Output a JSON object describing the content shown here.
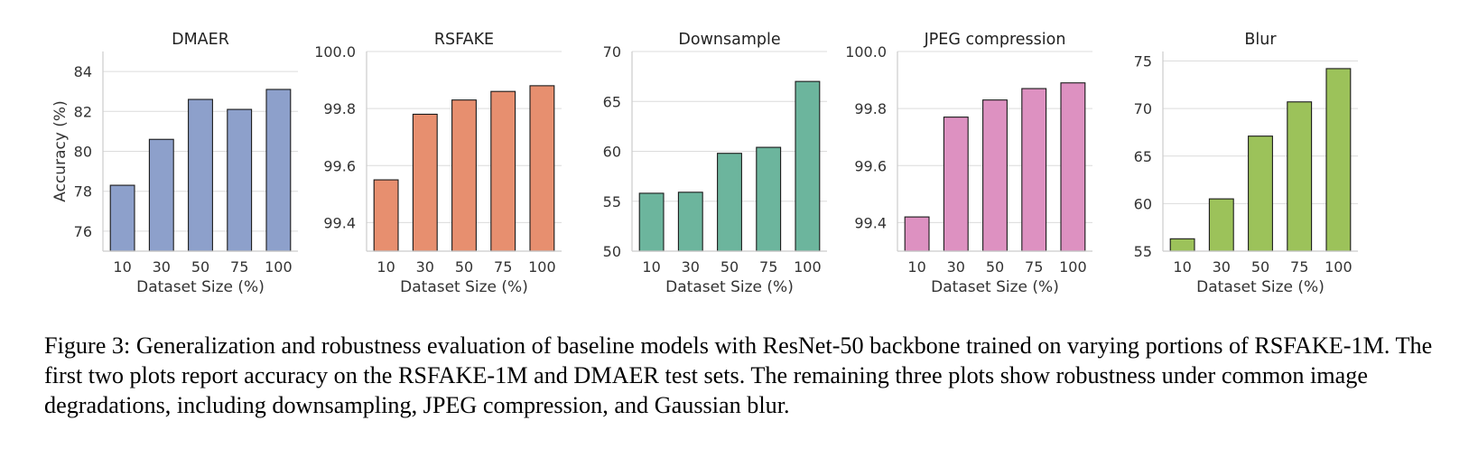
{
  "figure": {
    "caption": "Figure 3: Generalization and robustness evaluation of baseline models with ResNet-50 backbone trained on varying portions of RSFAKE-1M. The first two plots report accuracy on the RSFAKE-1M and DMAER test sets. The remaining three plots show robustness under common image degradations, including downsampling, JPEG compression, and Gaussian blur."
  },
  "chart_data": [
    {
      "type": "bar",
      "title": "DMAER",
      "xlabel": "Dataset Size (%)",
      "ylabel": "Accuracy (%)",
      "categories": [
        "10",
        "30",
        "50",
        "75",
        "100"
      ],
      "values": [
        78.3,
        80.6,
        82.6,
        82.1,
        83.1
      ],
      "ylim": [
        75.0,
        85.0
      ],
      "yticks": [
        "76",
        "78",
        "80",
        "82",
        "84"
      ],
      "color": "#8da0cb",
      "grid": "horizontal"
    },
    {
      "type": "bar",
      "title": "RSFAKE",
      "xlabel": "Dataset Size (%)",
      "ylabel": "",
      "categories": [
        "10",
        "30",
        "50",
        "75",
        "100"
      ],
      "values": [
        99.55,
        99.78,
        99.83,
        99.86,
        99.88
      ],
      "ylim": [
        99.3,
        100.0
      ],
      "yticks": [
        "99.4",
        "99.6",
        "99.8",
        "100.0"
      ],
      "color": "#e78f6f",
      "grid": "horizontal"
    },
    {
      "type": "bar",
      "title": "Downsample",
      "xlabel": "Dataset Size (%)",
      "ylabel": "",
      "categories": [
        "10",
        "30",
        "50",
        "75",
        "100"
      ],
      "values": [
        55.8,
        55.9,
        59.8,
        60.4,
        67.0
      ],
      "ylim": [
        50,
        70
      ],
      "yticks": [
        "50",
        "55",
        "60",
        "65",
        "70"
      ],
      "color": "#6cb59d",
      "grid": "horizontal"
    },
    {
      "type": "bar",
      "title": "JPEG compression",
      "xlabel": "Dataset Size (%)",
      "ylabel": "",
      "categories": [
        "10",
        "30",
        "50",
        "75",
        "100"
      ],
      "values": [
        99.42,
        99.77,
        99.83,
        99.87,
        99.89
      ],
      "ylim": [
        99.3,
        100.0
      ],
      "yticks": [
        "99.4",
        "99.6",
        "99.8",
        "100.0"
      ],
      "color": "#dd91c1",
      "grid": "horizontal"
    },
    {
      "type": "bar",
      "title": "Blur",
      "xlabel": "Dataset Size (%)",
      "ylabel": "",
      "categories": [
        "10",
        "30",
        "50",
        "75",
        "100"
      ],
      "values": [
        56.3,
        60.5,
        67.1,
        70.7,
        74.2
      ],
      "ylim": [
        55,
        76
      ],
      "yticks": [
        "55",
        "60",
        "65",
        "70",
        "75"
      ],
      "color": "#9cc25a",
      "grid": "horizontal"
    }
  ]
}
